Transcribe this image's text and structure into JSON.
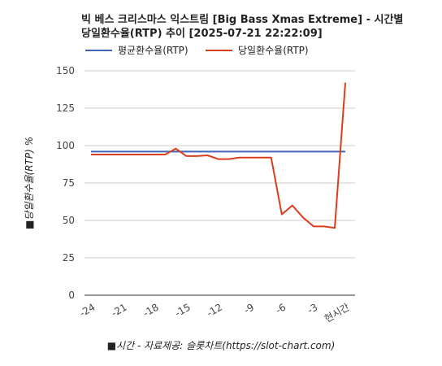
{
  "chart_data": {
    "type": "line",
    "title_line1": "빅 베스 크리스마스 익스트림 [Big Bass Xmas Extreme] - 시간별",
    "title_line2": "당일환수율(RTP) 추이 [2025-07-21 22:22:09]",
    "ylabel": "■당일환수율(RTP) %",
    "xlabel": "■시간 - 자료제공: 슬롯차트(https://slot-chart.com)",
    "ylim": [
      0,
      150
    ],
    "yticks": [
      "0",
      "25",
      "50",
      "75",
      "100",
      "125",
      "150"
    ],
    "xticks": [
      "-24",
      "-21",
      "-18",
      "-15",
      "-12",
      "-9",
      "-6",
      "-3",
      "현시간"
    ],
    "x": [
      -24,
      -23,
      -22,
      -21,
      -20,
      -19,
      -18,
      -17,
      -16,
      -15,
      -14,
      -13,
      -12,
      -11,
      -10,
      -9,
      -8,
      -7,
      -6,
      -5,
      -4,
      -3,
      -2,
      -1,
      0
    ],
    "series": [
      {
        "name": "평균환수율(RTP)",
        "color": "#3f63b5",
        "values": [
          96,
          96,
          96,
          96,
          96,
          96,
          96,
          96,
          96,
          96,
          96,
          96,
          96,
          96,
          96,
          96,
          96,
          96,
          96,
          96,
          96,
          96,
          96,
          96,
          96
        ]
      },
      {
        "name": "당일환수율(RTP)",
        "color": "#db3e1f",
        "values": [
          94,
          94,
          94,
          94,
          94,
          94,
          94,
          94,
          98,
          93,
          93,
          93.5,
          91,
          91,
          92,
          92,
          92,
          92,
          54,
          60,
          52,
          46,
          46,
          45,
          142
        ]
      }
    ],
    "grid": true,
    "legend": "top"
  }
}
